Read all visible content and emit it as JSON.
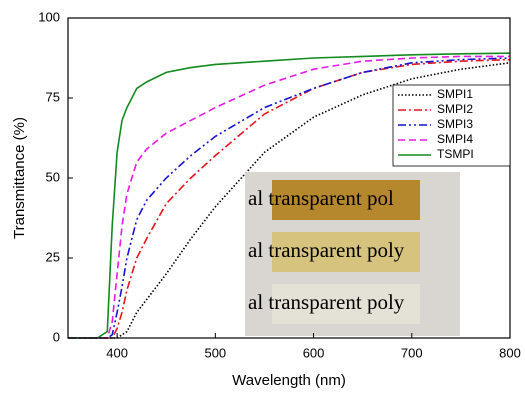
{
  "chart_data": {
    "type": "line",
    "xlabel": "Wavelength (nm)",
    "ylabel": "Transmittance (%)",
    "x": [
      350,
      380,
      390,
      395,
      400,
      405,
      410,
      420,
      430,
      450,
      475,
      500,
      550,
      600,
      650,
      700,
      750,
      800
    ],
    "series": [
      {
        "name": "SMPI1",
        "color": "#000000",
        "dash": "dotted",
        "values": [
          0,
          0,
          0,
          0,
          0,
          1,
          2,
          8,
          12,
          20,
          31,
          41,
          58,
          69,
          76,
          81,
          84,
          86
        ]
      },
      {
        "name": "SMPI2",
        "color": "#e8141c",
        "dash": "dash-dot",
        "values": [
          0,
          0,
          0,
          0,
          3,
          8,
          15,
          25,
          31,
          42,
          50,
          57,
          70,
          78,
          83,
          85.5,
          86.5,
          87
        ]
      },
      {
        "name": "SMPI3",
        "color": "#1414d2",
        "dash": "dash-dot-dot",
        "values": [
          0,
          0,
          0,
          1,
          8,
          16,
          25,
          37,
          43,
          50,
          57,
          63,
          72,
          78,
          83,
          86,
          87,
          87.5
        ]
      },
      {
        "name": "SMPI4",
        "color": "#e619e6",
        "dash": "dashed",
        "values": [
          0,
          0,
          0,
          5,
          20,
          35,
          45,
          55,
          59,
          64,
          68,
          72,
          79,
          84,
          86.5,
          87.5,
          88,
          88
        ]
      },
      {
        "name": "TSMPI",
        "color": "#138a1e",
        "dash": "solid",
        "values": [
          0,
          0,
          2,
          35,
          58,
          68,
          72,
          78,
          80,
          83,
          84.5,
          85.5,
          86.5,
          87.5,
          88,
          88.5,
          88.8,
          89
        ]
      }
    ],
    "xlim": [
      350,
      800
    ],
    "xticks": [
      400,
      500,
      600,
      700,
      800
    ],
    "ylim": [
      0,
      100
    ],
    "yticks": [
      0,
      25,
      50,
      75,
      100
    ],
    "legend": "upper right",
    "grid": false,
    "inset_labels": [
      "al transparent pol",
      "al transparent poly",
      "al transparent poly"
    ]
  }
}
